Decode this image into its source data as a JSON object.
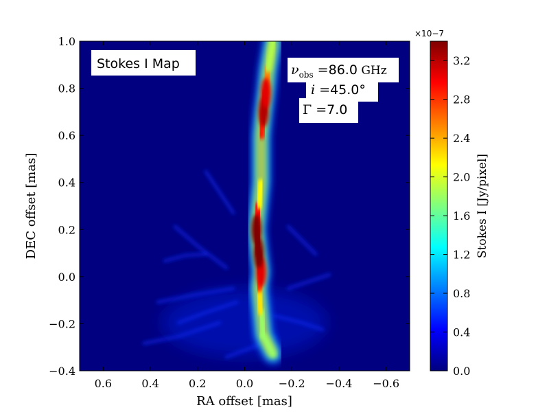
{
  "chart_data": {
    "type": "heatmap",
    "xlabel": "RA offset [mas]",
    "ylabel": "DEC offset [mas]",
    "xlim": [
      0.7,
      -0.7
    ],
    "ylim": [
      -0.4,
      1.0
    ],
    "x_ticks": [
      "0.6",
      "0.4",
      "0.2",
      "0.0",
      "−0.2",
      "−0.4",
      "−0.6"
    ],
    "x_tick_values": [
      0.6,
      0.4,
      0.2,
      0.0,
      -0.2,
      -0.4,
      -0.6
    ],
    "y_ticks": [
      "1.0",
      "0.8",
      "0.6",
      "0.4",
      "0.2",
      "0.0",
      "−0.2",
      "−0.4"
    ],
    "y_tick_values": [
      1.0,
      0.8,
      0.6,
      0.4,
      0.2,
      0.0,
      -0.2,
      -0.4
    ],
    "colorbar": {
      "label": "Stokes I [Jy/pixel]",
      "exponent_label": "×10−7",
      "range": [
        0.0,
        3.4
      ],
      "ticks": [
        "3.2",
        "2.8",
        "2.4",
        "2.0",
        "1.6",
        "1.2",
        "0.8",
        "0.4",
        "0.0"
      ],
      "tick_values": [
        3.2,
        2.8,
        2.4,
        2.0,
        1.6,
        1.2,
        0.8,
        0.4,
        0.0
      ],
      "colormap": "jet"
    },
    "annotations": {
      "map_label": "Stokes I Map",
      "nu_symbol": "ν",
      "nu_subscript": "obs",
      "nu_eq": " =",
      "nu_value": "86.0",
      "nu_unit": " GHz",
      "inc_symbol": "i",
      "inc_eq": " =",
      "inc_value": "45.0",
      "inc_unit": "°",
      "gamma_symbol": "Γ",
      "gamma_eq": " =",
      "gamma_value": "7.0"
    },
    "jet_ridge": [
      {
        "dec": -0.33,
        "ra": -0.12,
        "intensity": 0.55
      },
      {
        "dec": -0.25,
        "ra": -0.08,
        "intensity": 0.5
      },
      {
        "dec": -0.15,
        "ra": -0.07,
        "intensity": 0.55
      },
      {
        "dec": -0.05,
        "ra": -0.06,
        "intensity": 0.75
      },
      {
        "dec": 0.02,
        "ra": -0.07,
        "intensity": 0.9
      },
      {
        "dec": 0.1,
        "ra": -0.06,
        "intensity": 1.0
      },
      {
        "dec": 0.2,
        "ra": -0.05,
        "intensity": 1.0
      },
      {
        "dec": 0.3,
        "ra": -0.06,
        "intensity": 0.75
      },
      {
        "dec": 0.4,
        "ra": -0.07,
        "intensity": 0.5
      },
      {
        "dec": 0.5,
        "ra": -0.07,
        "intensity": 0.55
      },
      {
        "dec": 0.6,
        "ra": -0.07,
        "intensity": 0.75
      },
      {
        "dec": 0.7,
        "ra": -0.08,
        "intensity": 0.95
      },
      {
        "dec": 0.78,
        "ra": -0.09,
        "intensity": 0.9
      },
      {
        "dec": 0.88,
        "ra": -0.1,
        "intensity": 0.6
      },
      {
        "dec": 1.0,
        "ra": -0.12,
        "intensity": 0.5
      }
    ],
    "colors": {
      "background": "#000080",
      "jet_colormap": [
        "#00007f",
        "#0000ff",
        "#007fff",
        "#00ffff",
        "#7fff7f",
        "#ffff00",
        "#ff7f00",
        "#ff0000",
        "#7f0000"
      ]
    }
  }
}
